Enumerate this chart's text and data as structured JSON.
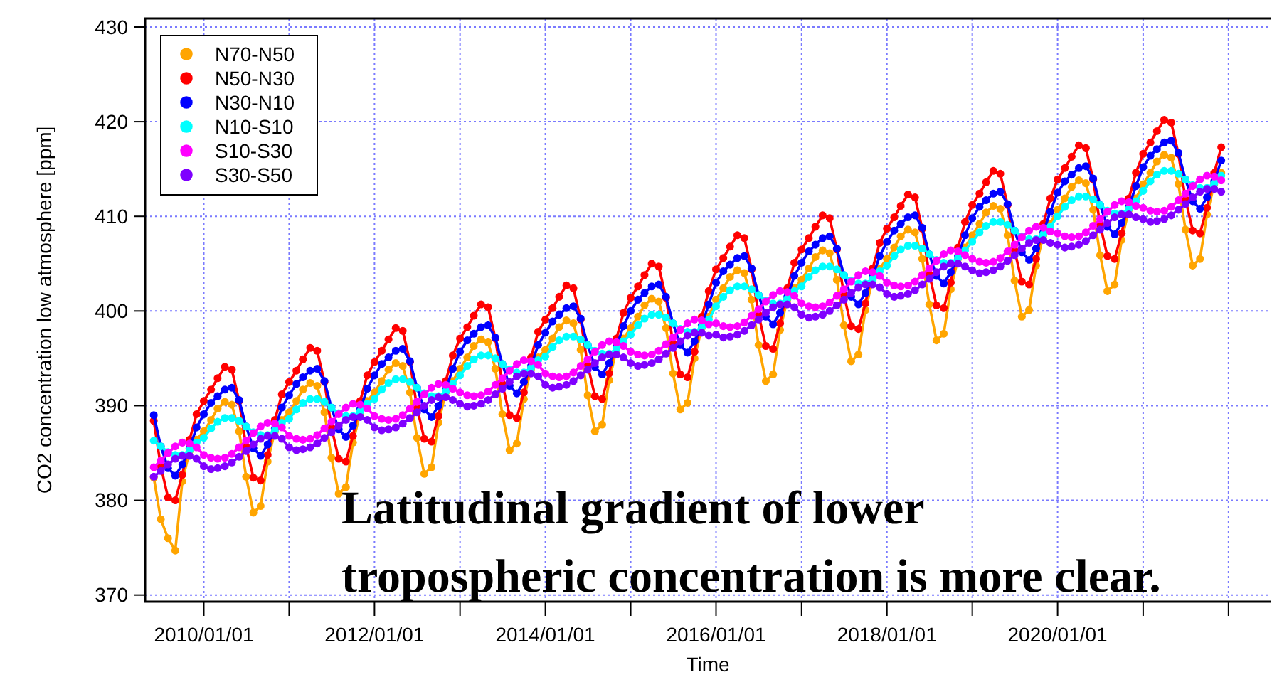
{
  "chart_data": {
    "type": "line",
    "xlabel": "Time",
    "ylabel": "CO2 concentration low atmosphere [ppm]",
    "annotations": [
      "Latitudinal gradient of lower\ntropospheric concentration is more clear."
    ],
    "x": [
      "2009-06",
      "2009-07",
      "2009-08",
      "2009-09",
      "2009-10",
      "2009-11",
      "2009-12",
      "2010-01",
      "2010-02",
      "2010-03",
      "2010-04",
      "2010-05",
      "2010-06",
      "2010-07",
      "2010-08",
      "2010-09",
      "2010-10",
      "2010-11",
      "2010-12",
      "2011-01",
      "2011-02",
      "2011-03",
      "2011-04",
      "2011-05",
      "2011-06",
      "2011-07",
      "2011-08",
      "2011-09",
      "2011-10",
      "2011-11",
      "2011-12",
      "2012-01",
      "2012-02",
      "2012-03",
      "2012-04",
      "2012-05",
      "2012-06",
      "2012-07",
      "2012-08",
      "2012-09",
      "2012-10",
      "2012-11",
      "2012-12",
      "2013-01",
      "2013-02",
      "2013-03",
      "2013-04",
      "2013-05",
      "2013-06",
      "2013-07",
      "2013-08",
      "2013-09",
      "2013-10",
      "2013-11",
      "2013-12",
      "2014-01",
      "2014-02",
      "2014-03",
      "2014-04",
      "2014-05",
      "2014-06",
      "2014-07",
      "2014-08",
      "2014-09",
      "2014-10",
      "2014-11",
      "2014-12",
      "2015-01",
      "2015-02",
      "2015-03",
      "2015-04",
      "2015-05",
      "2015-06",
      "2015-07",
      "2015-08",
      "2015-09",
      "2015-10",
      "2015-11",
      "2015-12",
      "2016-01",
      "2016-02",
      "2016-03",
      "2016-04",
      "2016-05",
      "2016-06",
      "2016-07",
      "2016-08",
      "2016-09",
      "2016-10",
      "2016-11",
      "2016-12",
      "2017-01",
      "2017-02",
      "2017-03",
      "2017-04",
      "2017-05",
      "2017-06",
      "2017-07",
      "2017-08",
      "2017-09",
      "2017-10",
      "2017-11",
      "2017-12",
      "2018-01",
      "2018-02",
      "2018-03",
      "2018-04",
      "2018-05",
      "2018-06",
      "2018-07",
      "2018-08",
      "2018-09",
      "2018-10",
      "2018-11",
      "2018-12",
      "2019-01",
      "2019-02",
      "2019-03",
      "2019-04",
      "2019-05",
      "2019-06",
      "2019-07",
      "2019-08",
      "2019-09",
      "2019-10",
      "2019-11",
      "2019-12",
      "2020-01",
      "2020-02",
      "2020-03",
      "2020-04",
      "2020-05",
      "2020-06",
      "2020-07",
      "2020-08",
      "2020-09",
      "2020-10",
      "2020-11",
      "2020-12",
      "2021-01",
      "2021-02",
      "2021-03",
      "2021-04",
      "2021-05",
      "2021-06",
      "2021-07",
      "2021-08",
      "2021-09",
      "2021-10",
      "2021-11",
      "2021-12"
    ],
    "series": [
      {
        "name": "N70-N50",
        "color": "#ffa500",
        "values": [
          382.4,
          378.0,
          376.0,
          374.7,
          382.0,
          385.2,
          386.4,
          387.3,
          388.5,
          389.7,
          390.4,
          390.1,
          387.3,
          382.5,
          378.7,
          379.4,
          384.1,
          387.3,
          388.5,
          389.3,
          390.5,
          391.7,
          392.4,
          392.1,
          389.3,
          384.5,
          380.7,
          381.4,
          386.1,
          389.3,
          390.5,
          391.4,
          392.6,
          393.8,
          394.5,
          394.2,
          391.4,
          386.6,
          382.8,
          383.5,
          388.2,
          391.4,
          392.6,
          393.9,
          395.1,
          396.3,
          397.0,
          396.7,
          393.9,
          389.1,
          385.3,
          386.0,
          390.7,
          393.9,
          395.1,
          395.9,
          397.1,
          398.3,
          399.0,
          398.7,
          395.9,
          391.1,
          387.3,
          388.0,
          392.7,
          395.9,
          397.1,
          398.2,
          399.4,
          400.6,
          401.3,
          401.0,
          398.2,
          393.4,
          389.6,
          390.3,
          395.0,
          398.2,
          399.4,
          401.2,
          402.4,
          403.6,
          404.3,
          404.0,
          401.2,
          396.4,
          392.6,
          393.3,
          398.0,
          401.2,
          402.4,
          403.3,
          404.5,
          405.7,
          406.4,
          406.1,
          403.3,
          398.5,
          394.7,
          395.4,
          400.1,
          403.3,
          404.5,
          405.5,
          406.7,
          407.9,
          408.6,
          408.3,
          405.5,
          400.7,
          396.9,
          397.6,
          402.3,
          405.5,
          406.7,
          408.0,
          409.2,
          410.4,
          411.1,
          410.8,
          408.0,
          403.2,
          399.4,
          400.1,
          404.8,
          408.0,
          409.2,
          410.7,
          411.9,
          413.1,
          413.8,
          413.5,
          410.7,
          405.9,
          402.1,
          402.8,
          407.5,
          410.7,
          411.9,
          413.4,
          414.6,
          415.8,
          416.5,
          416.2,
          413.4,
          408.6,
          404.8,
          405.5,
          410.2,
          413.4,
          414.6
        ]
      },
      {
        "name": "N50-N30",
        "color": "#ff0000",
        "values": [
          388.4,
          383.6,
          380.3,
          380.0,
          382.7,
          386.4,
          389.1,
          390.5,
          391.7,
          392.9,
          394.1,
          393.8,
          390.5,
          385.7,
          382.4,
          382.1,
          384.8,
          388.5,
          391.2,
          392.5,
          393.7,
          394.9,
          396.1,
          395.8,
          392.5,
          387.7,
          384.4,
          384.1,
          386.8,
          390.5,
          393.2,
          394.6,
          395.8,
          397.0,
          398.2,
          397.9,
          394.6,
          389.8,
          386.5,
          386.2,
          388.9,
          392.6,
          395.3,
          397.1,
          398.3,
          399.5,
          400.7,
          400.4,
          397.1,
          392.3,
          389.0,
          388.7,
          391.4,
          395.1,
          397.8,
          399.1,
          400.3,
          401.5,
          402.7,
          402.4,
          399.1,
          394.3,
          391.0,
          390.7,
          393.4,
          397.1,
          399.8,
          401.4,
          402.6,
          403.8,
          405.0,
          404.7,
          401.4,
          396.6,
          393.3,
          393.0,
          395.7,
          399.4,
          402.1,
          404.4,
          405.6,
          406.8,
          408.0,
          407.7,
          404.4,
          399.6,
          396.3,
          396.0,
          398.7,
          402.4,
          405.1,
          406.5,
          407.7,
          408.9,
          410.1,
          409.8,
          406.5,
          401.7,
          398.4,
          398.1,
          400.8,
          404.5,
          407.2,
          408.7,
          409.9,
          411.1,
          412.3,
          412.0,
          408.7,
          403.9,
          400.6,
          400.3,
          403.0,
          406.7,
          409.4,
          411.2,
          412.4,
          413.6,
          414.8,
          414.5,
          411.2,
          406.4,
          403.1,
          402.8,
          405.5,
          409.2,
          411.9,
          413.9,
          415.1,
          416.3,
          417.5,
          417.2,
          413.9,
          409.1,
          405.8,
          405.5,
          408.2,
          411.9,
          414.6,
          416.6,
          417.8,
          419.0,
          420.2,
          419.9,
          416.6,
          411.8,
          408.5,
          408.2,
          410.9,
          414.6,
          417.3
        ]
      },
      {
        "name": "N30-N10",
        "color": "#0000ff",
        "values": [
          389.0,
          385.7,
          383.4,
          382.6,
          383.8,
          385.5,
          387.7,
          389.1,
          390.3,
          391.0,
          391.7,
          391.9,
          390.6,
          387.8,
          385.5,
          384.7,
          385.9,
          387.6,
          389.8,
          391.1,
          392.3,
          393.0,
          393.7,
          393.9,
          392.6,
          389.8,
          387.5,
          386.7,
          387.9,
          389.6,
          391.8,
          393.2,
          394.4,
          395.1,
          395.8,
          396.0,
          394.7,
          391.9,
          389.6,
          388.8,
          390.0,
          391.7,
          393.9,
          395.7,
          396.9,
          397.6,
          398.3,
          398.5,
          397.2,
          394.4,
          392.1,
          391.3,
          392.5,
          394.2,
          396.4,
          397.7,
          398.9,
          399.6,
          400.3,
          400.5,
          399.2,
          396.4,
          394.1,
          393.3,
          394.5,
          396.2,
          398.4,
          400.0,
          401.2,
          401.9,
          402.6,
          402.8,
          401.5,
          398.7,
          396.4,
          395.6,
          396.8,
          398.5,
          400.7,
          403.0,
          404.2,
          404.9,
          405.6,
          405.8,
          404.5,
          401.7,
          399.4,
          398.6,
          399.8,
          401.5,
          403.7,
          405.1,
          406.3,
          407.0,
          407.7,
          407.9,
          406.6,
          403.8,
          401.5,
          400.7,
          401.9,
          403.6,
          405.8,
          407.3,
          408.5,
          409.2,
          409.9,
          410.1,
          408.8,
          406.0,
          403.7,
          402.9,
          404.1,
          405.8,
          408.0,
          409.8,
          411.0,
          411.7,
          412.4,
          412.6,
          411.3,
          408.5,
          406.2,
          405.4,
          406.6,
          408.3,
          410.5,
          412.5,
          413.7,
          414.4,
          415.1,
          415.3,
          414.0,
          411.2,
          408.9,
          408.1,
          409.3,
          411.0,
          413.2,
          415.2,
          416.4,
          417.1,
          417.8,
          418.0,
          416.7,
          413.9,
          411.6,
          410.8,
          412.0,
          413.7,
          415.9
        ]
      },
      {
        "name": "N10-S10",
        "color": "#00ffff",
        "values": [
          386.3,
          385.7,
          385.1,
          384.8,
          384.8,
          385.3,
          386.1,
          386.6,
          387.6,
          388.3,
          388.7,
          388.7,
          388.4,
          387.8,
          387.2,
          386.9,
          386.9,
          387.4,
          388.2,
          388.6,
          389.6,
          390.3,
          390.7,
          390.7,
          390.4,
          389.8,
          389.2,
          388.9,
          388.9,
          389.4,
          390.2,
          390.7,
          391.7,
          392.4,
          392.8,
          392.8,
          392.5,
          391.9,
          391.3,
          391.0,
          391.0,
          391.5,
          392.3,
          393.2,
          394.2,
          394.9,
          395.3,
          395.3,
          395.0,
          394.4,
          393.8,
          393.5,
          393.5,
          394.0,
          394.8,
          395.2,
          396.2,
          396.9,
          397.3,
          397.3,
          397.0,
          396.4,
          395.8,
          395.5,
          395.5,
          396.0,
          396.8,
          397.5,
          398.5,
          399.2,
          399.6,
          399.6,
          399.3,
          398.7,
          398.1,
          397.8,
          397.8,
          398.3,
          399.1,
          400.5,
          401.5,
          402.2,
          402.6,
          402.6,
          402.3,
          401.7,
          401.1,
          400.8,
          400.8,
          401.3,
          402.1,
          402.6,
          403.6,
          404.3,
          404.7,
          404.7,
          404.4,
          403.8,
          403.2,
          402.9,
          402.9,
          403.4,
          404.2,
          404.8,
          405.8,
          406.5,
          406.9,
          406.9,
          406.6,
          406.0,
          405.4,
          405.1,
          405.1,
          405.6,
          406.4,
          407.3,
          408.3,
          409.0,
          409.4,
          409.4,
          409.1,
          408.5,
          407.9,
          407.6,
          407.6,
          408.1,
          408.9,
          410.0,
          411.0,
          411.7,
          412.1,
          412.1,
          411.8,
          411.2,
          410.6,
          410.3,
          410.3,
          410.8,
          411.6,
          412.7,
          413.7,
          414.4,
          414.8,
          414.8,
          414.5,
          413.9,
          413.3,
          413.0,
          413.0,
          413.5,
          414.3
        ]
      },
      {
        "name": "S10-S30",
        "color": "#ff00ff",
        "values": [
          383.5,
          384.2,
          385.0,
          385.7,
          386.1,
          386.0,
          385.6,
          384.8,
          384.5,
          384.4,
          384.5,
          384.9,
          385.6,
          386.3,
          387.1,
          387.8,
          388.2,
          388.1,
          387.7,
          386.8,
          386.5,
          386.4,
          386.5,
          386.9,
          387.6,
          388.3,
          389.1,
          389.8,
          390.2,
          390.1,
          389.7,
          388.9,
          388.6,
          388.5,
          388.6,
          389.0,
          389.7,
          390.4,
          391.2,
          391.9,
          392.3,
          392.2,
          391.8,
          391.4,
          391.1,
          391.0,
          391.1,
          391.5,
          392.2,
          392.9,
          393.7,
          394.4,
          394.8,
          394.7,
          394.3,
          393.4,
          393.1,
          393.0,
          393.1,
          393.5,
          394.2,
          394.9,
          395.7,
          396.4,
          396.8,
          396.7,
          396.3,
          395.7,
          395.4,
          395.3,
          395.4,
          395.8,
          396.5,
          397.2,
          398.0,
          398.7,
          399.1,
          399.0,
          398.6,
          398.7,
          398.4,
          398.3,
          398.4,
          398.8,
          399.5,
          400.2,
          401.0,
          401.7,
          402.1,
          402.0,
          401.6,
          400.8,
          400.5,
          400.4,
          400.5,
          400.9,
          401.6,
          402.3,
          403.1,
          403.8,
          404.2,
          404.1,
          403.7,
          403.0,
          402.7,
          402.6,
          402.7,
          403.1,
          403.8,
          404.5,
          405.3,
          406.0,
          406.4,
          406.3,
          405.9,
          405.5,
          405.2,
          405.1,
          405.2,
          405.6,
          406.3,
          407.0,
          407.8,
          408.5,
          408.9,
          408.8,
          408.4,
          408.2,
          407.9,
          407.8,
          407.9,
          408.3,
          409.0,
          409.7,
          410.5,
          411.2,
          411.6,
          411.5,
          411.1,
          410.9,
          410.6,
          410.5,
          410.6,
          411.0,
          411.7,
          412.4,
          413.2,
          413.9,
          414.3,
          414.2,
          413.8
        ]
      },
      {
        "name": "S30-S50",
        "color": "#7f00ff",
        "values": [
          382.5,
          383.1,
          383.8,
          384.4,
          384.7,
          384.7,
          384.4,
          383.6,
          383.3,
          383.4,
          383.6,
          384.0,
          384.6,
          385.2,
          385.9,
          386.5,
          386.8,
          386.8,
          386.5,
          385.6,
          385.3,
          385.4,
          385.6,
          386.0,
          386.6,
          387.2,
          387.9,
          388.5,
          388.8,
          388.8,
          388.5,
          387.7,
          387.4,
          387.5,
          387.7,
          388.1,
          388.7,
          389.3,
          390.0,
          390.6,
          390.9,
          390.9,
          390.6,
          390.2,
          389.9,
          390.0,
          390.2,
          390.6,
          391.2,
          391.8,
          392.5,
          393.1,
          393.4,
          393.4,
          393.1,
          392.2,
          391.9,
          392.0,
          392.2,
          392.6,
          393.2,
          393.8,
          394.5,
          395.1,
          395.4,
          395.4,
          395.1,
          394.5,
          394.2,
          394.3,
          394.5,
          394.9,
          395.5,
          396.1,
          396.8,
          397.4,
          397.7,
          397.7,
          397.4,
          397.5,
          397.2,
          397.3,
          397.5,
          397.9,
          398.5,
          399.1,
          399.8,
          400.4,
          400.7,
          400.7,
          400.4,
          399.6,
          399.3,
          399.4,
          399.6,
          400.0,
          400.6,
          401.2,
          401.9,
          402.5,
          402.8,
          402.8,
          402.5,
          401.8,
          401.5,
          401.6,
          401.8,
          402.2,
          402.8,
          403.4,
          404.1,
          404.7,
          405.0,
          405.0,
          404.7,
          404.3,
          404.0,
          404.1,
          404.3,
          404.7,
          405.3,
          405.9,
          406.6,
          407.2,
          407.5,
          407.5,
          407.2,
          407.0,
          406.7,
          406.8,
          407.0,
          407.4,
          408.0,
          408.6,
          409.3,
          409.9,
          410.2,
          410.2,
          409.9,
          409.7,
          409.4,
          409.5,
          409.7,
          410.1,
          410.7,
          411.3,
          412.0,
          412.6,
          412.9,
          412.9,
          412.6
        ]
      }
    ],
    "xlim": [
      "2009-04-25",
      "2022-06-30"
    ],
    "xticks": [
      {
        "value": "2010-01-01",
        "label": "2010/01/01"
      },
      {
        "value": "2011-01-01",
        "label": null
      },
      {
        "value": "2012-01-01",
        "label": "2012/01/01"
      },
      {
        "value": "2013-01-01",
        "label": null
      },
      {
        "value": "2014-01-01",
        "label": "2014/01/01"
      },
      {
        "value": "2015-01-01",
        "label": null
      },
      {
        "value": "2016-01-01",
        "label": "2016/01/01"
      },
      {
        "value": "2017-01-01",
        "label": null
      },
      {
        "value": "2018-01-01",
        "label": "2018/01/01"
      },
      {
        "value": "2019-01-01",
        "label": null
      },
      {
        "value": "2020-01-01",
        "label": "2020/01/01"
      },
      {
        "value": "2021-01-01",
        "label": null
      },
      {
        "value": "2022-01-01",
        "label": null
      }
    ],
    "ylim": [
      369.3,
      430.9
    ],
    "yticks": [
      370,
      380,
      390,
      400,
      410,
      420,
      430
    ],
    "grid": true,
    "legend": "top left",
    "marker": "circle",
    "line_style": "solid"
  }
}
